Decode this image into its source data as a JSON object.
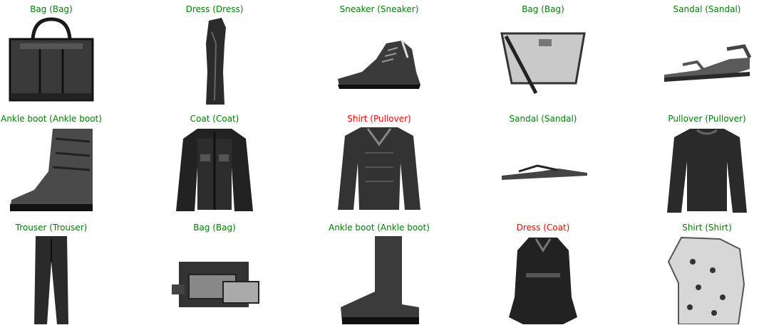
{
  "colors": {
    "correct": "#008000",
    "incorrect": "#ff0000",
    "ink": "#1a1a1a"
  },
  "grid": [
    {
      "label": "Bag (Bag)",
      "correct": true,
      "icon": "bag-icon"
    },
    {
      "label": "Dress (Dress)",
      "correct": true,
      "icon": "dress-icon"
    },
    {
      "label": "Sneaker (Sneaker)",
      "correct": true,
      "icon": "sneaker-icon"
    },
    {
      "label": "Bag (Bag)",
      "correct": true,
      "icon": "handbag-icon"
    },
    {
      "label": "Sandal (Sandal)",
      "correct": true,
      "icon": "sandal-icon"
    },
    {
      "label": "Ankle boot (Ankle boot)",
      "correct": true,
      "icon": "boot-icon"
    },
    {
      "label": "Coat (Coat)",
      "correct": true,
      "icon": "coat-icon"
    },
    {
      "label": "Shirt (Pullover)",
      "correct": false,
      "icon": "pullover-icon"
    },
    {
      "label": "Sandal (Sandal)",
      "correct": true,
      "icon": "flipflop-icon"
    },
    {
      "label": "Pullover (Pullover)",
      "correct": true,
      "icon": "pullover-icon"
    },
    {
      "label": "Trouser (Trouser)",
      "correct": true,
      "icon": "trouser-icon"
    },
    {
      "label": "Bag (Bag)",
      "correct": true,
      "icon": "clutch-icon"
    },
    {
      "label": "Ankle boot (Ankle boot)",
      "correct": true,
      "icon": "tallboot-icon"
    },
    {
      "label": "Dress (Coat)",
      "correct": false,
      "icon": "coatdress-icon"
    },
    {
      "label": "Shirt (Shirt)",
      "correct": true,
      "icon": "shirt-icon"
    }
  ]
}
